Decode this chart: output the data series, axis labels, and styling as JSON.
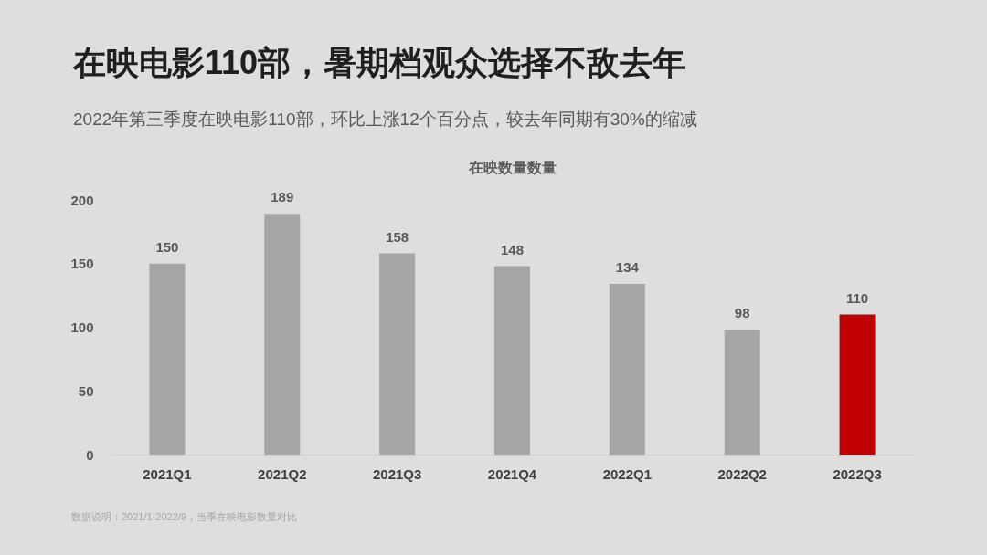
{
  "chart_data": {
    "type": "bar",
    "title": "在映电影110部，暑期档观众选择不敌去年",
    "subtitle": "2022年第三季度在映电影110部，环比上涨12个百分点，较去年同期有30%的缩减",
    "categories": [
      "2021Q1",
      "2021Q2",
      "2021Q3",
      "2021Q4",
      "2022Q1",
      "2022Q2",
      "2022Q3"
    ],
    "values": [
      150,
      189,
      158,
      148,
      134,
      98,
      110
    ],
    "colors": [
      "#a6a6a6",
      "#a6a6a6",
      "#a6a6a6",
      "#a6a6a6",
      "#a6a6a6",
      "#a6a6a6",
      "#c00000"
    ],
    "ylim": [
      0,
      200
    ],
    "yticks": [
      0,
      50,
      100,
      150,
      200
    ],
    "grid": false,
    "data_labels": true,
    "annotations": [
      "在映数量数量",
      "数据说明：2021/1-2022/9，当季在映电影数量对比"
    ]
  }
}
